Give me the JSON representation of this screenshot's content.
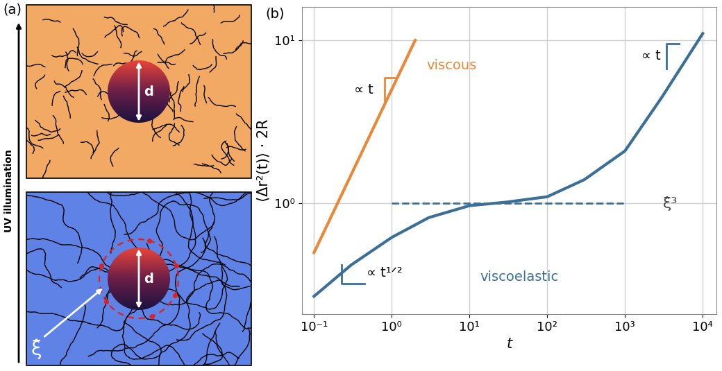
{
  "chart_data": {
    "type": "line",
    "panel_label": "(b)",
    "x_label": "t",
    "y_label": "⟨Δr²(t)⟩ · 2R",
    "log": true,
    "grid": true,
    "xlim": [
      0.07,
      15000
    ],
    "xticks": [
      {
        "value": 0.1,
        "label": "10⁻¹"
      },
      {
        "value": 1,
        "label": "10⁰"
      },
      {
        "value": 10,
        "label": "10¹"
      },
      {
        "value": 100,
        "label": "10²"
      },
      {
        "value": 1000,
        "label": "10³"
      },
      {
        "value": 10000,
        "label": "10⁴"
      }
    ],
    "ylim": [
      0.21,
      16
    ],
    "yticks": [
      {
        "value": 1,
        "label": "10⁰"
      },
      {
        "value": 10,
        "label": "10¹"
      }
    ],
    "series": [
      {
        "name": "viscous",
        "color": "#e8893a",
        "line_style": "solid",
        "x": [
          0.1,
          2
        ],
        "values": [
          0.5,
          10
        ]
      },
      {
        "name": "viscoelastic",
        "color": "#3b6f97",
        "line_style": "solid",
        "x": [
          0.1,
          0.3,
          1,
          3,
          10,
          30,
          100,
          300,
          1000,
          3000,
          10000
        ],
        "values": [
          0.27,
          0.42,
          0.62,
          0.82,
          0.97,
          1.02,
          1.1,
          1.4,
          2.1,
          4.5,
          11
        ]
      },
      {
        "name": "ξ̂³",
        "color": "#3b6f97",
        "line_style": "dashed",
        "x": [
          1,
          1000
        ],
        "values": [
          1,
          1
        ]
      }
    ],
    "annotations": [
      {
        "text": "∝ t",
        "color": "#e8893a"
      },
      {
        "text": "∝ t¹ᐟ²",
        "color": "#3b6f97"
      },
      {
        "text": "∝ t",
        "color": "#3b6f97"
      }
    ]
  },
  "diagram": {
    "panel_label": "(a)",
    "arrow_label": "UV illumination",
    "top_box": {
      "particle_label": "d",
      "color": "#f2a963"
    },
    "bottom_box": {
      "particle_label": "d",
      "mesh_label": "ξ̂",
      "color": "#5f82e6"
    }
  }
}
